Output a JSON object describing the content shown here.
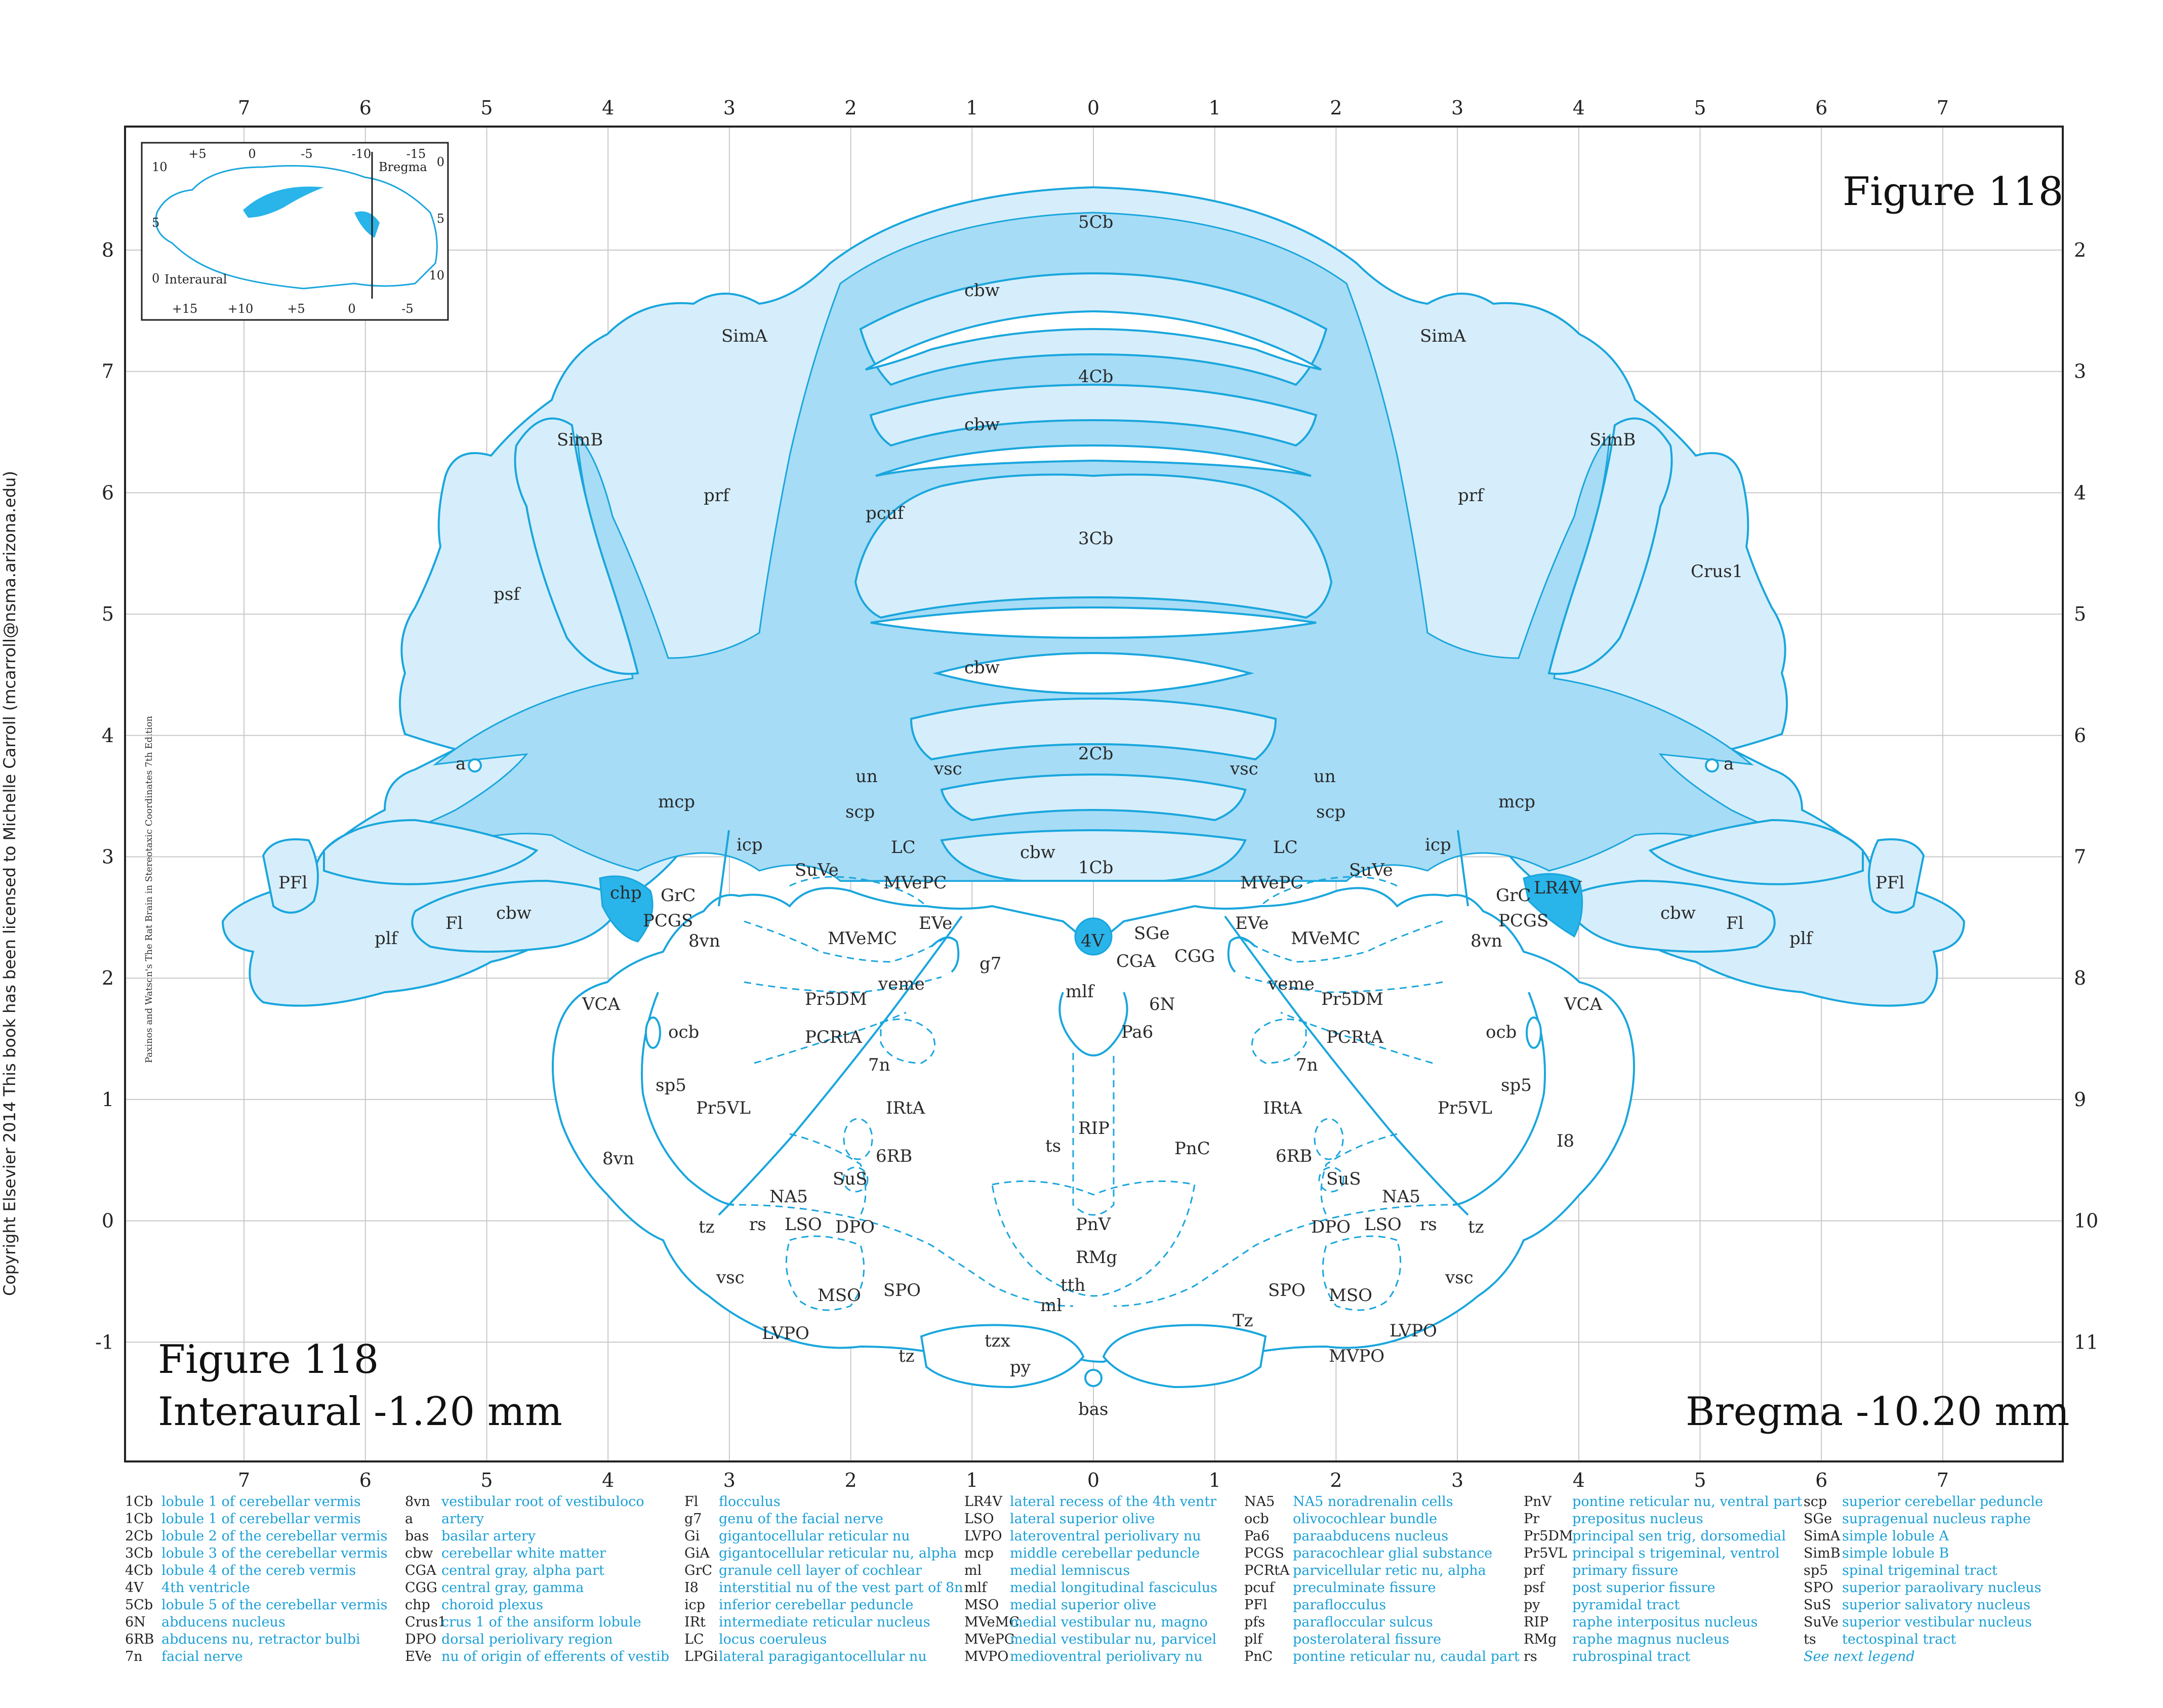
{
  "figure": {
    "title": "Figure 118",
    "caption_title": "Figure 118",
    "interaural": "Interaural -1.20 mm",
    "bregma": "Bregma -10.20 mm"
  },
  "side_text": {
    "copyright": "Copyright Elsevier 2014 This book has been licensed to Michelle Carroll (mcarroll@nsma.arizona.edu)",
    "book": "Paxinos and Watson's The Rat Brain in Stereotaxic Coordinates   7th Edition"
  },
  "axes": {
    "top_ticks": [
      "7",
      "6",
      "5",
      "4",
      "3",
      "2",
      "1",
      "0",
      "1",
      "2",
      "3",
      "4",
      "5",
      "6",
      "7"
    ],
    "bottom_ticks": [
      "7",
      "6",
      "5",
      "4",
      "3",
      "2",
      "1",
      "0",
      "1",
      "2",
      "3",
      "4",
      "5",
      "6",
      "7"
    ],
    "left_ticks": [
      "8",
      "7",
      "6",
      "5",
      "4",
      "3",
      "2",
      "1",
      "0",
      "-1"
    ],
    "right_ticks": [
      "2",
      "3",
      "4",
      "5",
      "6",
      "7",
      "8",
      "9",
      "10",
      "11"
    ]
  },
  "inset": {
    "top_ticks": [
      "+5",
      "0",
      "-5",
      "-10",
      "-15"
    ],
    "bottom_ticks": [
      "+15",
      "+10",
      "+5",
      "0",
      "-5"
    ],
    "left_ticks": [
      "10",
      "5",
      "0"
    ],
    "right_ticks": [
      "0",
      "5",
      "10"
    ],
    "bregma_label": "Bregma",
    "interaural_label": "Interaural"
  },
  "labels": {
    "l5Cb": "5Cb",
    "cbw_a": "cbw",
    "l4Cb": "4Cb",
    "cbw_b": "cbw",
    "pcuf": "pcuf",
    "l3Cb": "3Cb",
    "cbw_c": "cbw",
    "l2Cb": "2Cb",
    "cbw_d": "cbw",
    "l1Cb": "1Cb",
    "SimA_l": "SimA",
    "SimA_r": "SimA",
    "SimB_l": "SimB",
    "SimB_r": "SimB",
    "prf_l": "prf",
    "prf_r": "prf",
    "psf": "psf",
    "Crus1": "Crus1",
    "a_l": "a",
    "a_r": "a",
    "mcp_l": "mcp",
    "mcp_r": "mcp",
    "PFl_l": "PFl",
    "PFl_r": "PFl",
    "icp_l": "icp",
    "icp_r": "icp",
    "chp": "chp",
    "LR4V": "LR4V",
    "GrC_l": "GrC",
    "GrC_r": "GrC",
    "PCGS_l": "PCGS",
    "PCGS_r": "PCGS",
    "Fl_l": "Fl",
    "Fl_r": "Fl",
    "cbw_fl_l": "cbw",
    "cbw_fl_r": "cbw",
    "plf_l": "plf",
    "plf_r": "plf",
    "vn8_l": "8vn",
    "vn8_r": "8vn",
    "vn8_b": "8vn",
    "un_l": "un",
    "un_r": "un",
    "vsc_tl": "vsc",
    "vsc_tr": "vsc",
    "scp_l": "scp",
    "scp_r": "scp",
    "LC_l": "LC",
    "LC_r": "LC",
    "SuVe_l": "SuVe",
    "SuVe_r": "SuVe",
    "MVePC_l": "MVePC",
    "MVePC_r": "MVePC",
    "EVe_l": "EVe",
    "EVe_r": "EVe",
    "MVeMC_l": "MVeMC",
    "MVeMC_r": "MVeMC",
    "v4": "4V",
    "SGe": "SGe",
    "CGA": "CGA",
    "CGG": "CGG",
    "g7": "g7",
    "veme_l": "veme",
    "veme_r": "veme",
    "Pr5DM_l": "Pr5DM",
    "Pr5DM_r": "Pr5DM",
    "mlf": "mlf",
    "n6": "6N",
    "Pa6": "Pa6",
    "VCA_l": "VCA",
    "VCA_r": "VCA",
    "ocb_l": "ocb",
    "ocb_r": "ocb",
    "PCRtA_l": "PCRtA",
    "PCRtA_r": "PCRtA",
    "n7_l": "7n",
    "n7_r": "7n",
    "sp5_l": "sp5",
    "sp5_r": "sp5",
    "Pr5VL_l": "Pr5VL",
    "Pr5VL_r": "Pr5VL",
    "IRtA_l": "IRtA",
    "IRtA_r": "IRtA",
    "RIP": "RIP",
    "ts": "ts",
    "PnC": "PnC",
    "RB6_l": "6RB",
    "RB6_r": "6RB",
    "I8": "I8",
    "SuS_l": "SuS",
    "SuS_r": "SuS",
    "NA5_l": "NA5",
    "NA5_r": "NA5",
    "tz_l": "tz",
    "tz_r": "tz",
    "tz_b": "tz",
    "rs_l": "rs",
    "rs_r": "rs",
    "LSO_l": "LSO",
    "LSO_r": "LSO",
    "DPO_l": "DPO",
    "DPO_r": "DPO",
    "PnV": "PnV",
    "vsc_bl": "vsc",
    "vsc_br": "vsc",
    "RMg": "RMg",
    "MSO_l": "MSO",
    "MSO_r": "MSO",
    "SPO_l": "SPO",
    "SPO_r": "SPO",
    "tth": "tth",
    "ml": "ml",
    "LVPO_l": "LVPO",
    "LVPO_r": "LVPO",
    "Tz": "Tz",
    "MVPO": "MVPO",
    "tzx": "tzx",
    "py": "py",
    "bas": "bas"
  },
  "legend": [
    [
      [
        "1Cb",
        "lobule 1 of cerebellar vermis"
      ],
      [
        "1Cb",
        "lobule 1 of cerebellar vermis"
      ],
      [
        "2Cb",
        "lobule 2 of the cerebellar vermis"
      ],
      [
        "3Cb",
        "lobule 3 of the cerebellar vermis"
      ],
      [
        "4Cb",
        "lobule 4 of the cereb vermis"
      ],
      [
        "4V",
        "4th ventricle"
      ],
      [
        "5Cb",
        "lobule 5 of the cerebellar vermis"
      ],
      [
        "6N",
        "abducens nucleus"
      ],
      [
        "6RB",
        "abducens nu, retractor bulbi"
      ],
      [
        "7n",
        "facial nerve"
      ]
    ],
    [
      [
        "8vn",
        "vestibular root of vestibuloco"
      ],
      [
        "a",
        "artery"
      ],
      [
        "bas",
        "basilar artery"
      ],
      [
        "cbw",
        "cerebellar white matter"
      ],
      [
        "CGA",
        "central gray, alpha part"
      ],
      [
        "CGG",
        "central gray, gamma"
      ],
      [
        "chp",
        "choroid plexus"
      ],
      [
        "Crus1",
        "crus 1 of the ansiform lobule"
      ],
      [
        "DPO",
        "dorsal periolivary region"
      ],
      [
        "EVe",
        "nu of origin of efferents of vestib"
      ]
    ],
    [
      [
        "Fl",
        "flocculus"
      ],
      [
        "g7",
        "genu of the facial nerve"
      ],
      [
        "Gi",
        "gigantocellular reticular nu"
      ],
      [
        "GiA",
        "gigantocellular reticular nu, alpha"
      ],
      [
        "GrC",
        "granule cell layer of cochlear"
      ],
      [
        "I8",
        "interstitial nu of the vest part of 8n"
      ],
      [
        "icp",
        "inferior cerebellar peduncle"
      ],
      [
        "IRt",
        "intermediate reticular nucleus"
      ],
      [
        "LC",
        "locus coeruleus"
      ],
      [
        "LPGi",
        "lateral paragigantocellular nu"
      ]
    ],
    [
      [
        "LR4V",
        "lateral recess of the 4th ventr"
      ],
      [
        "LSO",
        "lateral superior olive"
      ],
      [
        "LVPO",
        "lateroventral periolivary nu"
      ],
      [
        "mcp",
        "middle cerebellar peduncle"
      ],
      [
        "ml",
        "medial lemniscus"
      ],
      [
        "mlf",
        "medial longitudinal fasciculus"
      ],
      [
        "MSO",
        "medial superior olive"
      ],
      [
        "MVeMC",
        "medial vestibular nu, magno"
      ],
      [
        "MVePC",
        "medial vestibular nu, parvicel"
      ],
      [
        "MVPO",
        "medioventral periolivary nu"
      ]
    ],
    [
      [
        "NA5",
        "NA5 noradrenalin cells"
      ],
      [
        "ocb",
        "olivocochlear bundle"
      ],
      [
        "Pa6",
        "paraabducens nucleus"
      ],
      [
        "PCGS",
        "paracochlear glial substance"
      ],
      [
        "PCRtA",
        "parvicellular retic nu, alpha"
      ],
      [
        "pcuf",
        "preculminate fissure"
      ],
      [
        "PFl",
        "paraflocculus"
      ],
      [
        "pfs",
        "parafloccular sulcus"
      ],
      [
        "plf",
        "posterolateral fissure"
      ],
      [
        "PnC",
        "pontine reticular nu, caudal part"
      ]
    ],
    [
      [
        "PnV",
        "pontine reticular nu, ventral part"
      ],
      [
        "Pr",
        "prepositus nucleus"
      ],
      [
        "Pr5DM",
        "principal sen trig, dorsomedial"
      ],
      [
        "Pr5VL",
        "principal s trigeminal, ventrol"
      ],
      [
        "prf",
        "primary fissure"
      ],
      [
        "psf",
        "post superior fissure"
      ],
      [
        "py",
        "pyramidal tract"
      ],
      [
        "RIP",
        "raphe interpositus nucleus"
      ],
      [
        "RMg",
        "raphe magnus nucleus"
      ],
      [
        "rs",
        "rubrospinal tract"
      ]
    ],
    [
      [
        "scp",
        "superior cerebellar peduncle"
      ],
      [
        "SGe",
        "supragenual nucleus raphe"
      ],
      [
        "SimA",
        "simple lobule A"
      ],
      [
        "SimB",
        "simple lobule B"
      ],
      [
        "sp5",
        "spinal trigeminal tract"
      ],
      [
        "SPO",
        "superior paraolivary nucleus"
      ],
      [
        "SuS",
        "superior salivatory nucleus"
      ],
      [
        "SuVe",
        "superior vestibular nucleus"
      ],
      [
        "ts",
        "tectospinal tract"
      ],
      [
        "",
        "See next legend"
      ]
    ]
  ],
  "colors": {
    "accent": "#1aa6dd",
    "fill_light": "#d6eefb",
    "fill_wm": "#a6dcf6",
    "fill_dark": "#29b4ea"
  }
}
